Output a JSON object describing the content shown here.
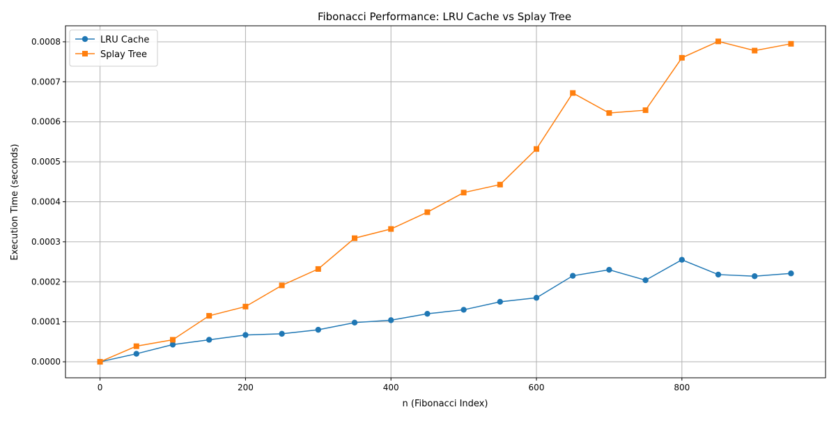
{
  "chart_data": {
    "type": "line",
    "title": "Fibonacci Performance: LRU Cache vs Splay Tree",
    "xlabel": "n (Fibonacci Index)",
    "ylabel": "Execution Time (seconds)",
    "xlim": [
      -47.5,
      997.5
    ],
    "ylim": [
      -4e-05,
      0.00084
    ],
    "xticks": [
      0,
      200,
      400,
      600,
      800
    ],
    "xtick_labels": [
      "0",
      "200",
      "400",
      "600",
      "800"
    ],
    "yticks": [
      0,
      0.0001,
      0.0002,
      0.0003,
      0.0004,
      0.0005,
      0.0006,
      0.0007,
      0.0008
    ],
    "ytick_labels": [
      "0.0000",
      "0.0001",
      "0.0002",
      "0.0003",
      "0.0004",
      "0.0005",
      "0.0006",
      "0.0007",
      "0.0008"
    ],
    "grid": true,
    "legend_position": "top-left",
    "x": [
      0,
      50,
      100,
      150,
      200,
      250,
      300,
      350,
      400,
      450,
      500,
      550,
      600,
      650,
      700,
      750,
      800,
      850,
      900,
      950
    ],
    "series": [
      {
        "name": "LRU Cache",
        "color": "#1f77b4",
        "marker": "circle",
        "values": [
          0.0,
          2e-05,
          4.3e-05,
          5.5e-05,
          6.7e-05,
          7e-05,
          8e-05,
          9.8e-05,
          0.000104,
          0.00012,
          0.00013,
          0.00015,
          0.00016,
          0.000215,
          0.00023,
          0.000204,
          0.000255,
          0.000218,
          0.000214,
          0.000221
        ]
      },
      {
        "name": "Splay Tree",
        "color": "#ff7f0e",
        "marker": "square",
        "values": [
          0.0,
          3.9e-05,
          5.5e-05,
          0.000115,
          0.000138,
          0.000191,
          0.000232,
          0.000309,
          0.000332,
          0.000374,
          0.000423,
          0.000443,
          0.000532,
          0.000672,
          0.000622,
          0.000629,
          0.00076,
          0.000801,
          0.000778,
          0.000795
        ]
      }
    ]
  }
}
